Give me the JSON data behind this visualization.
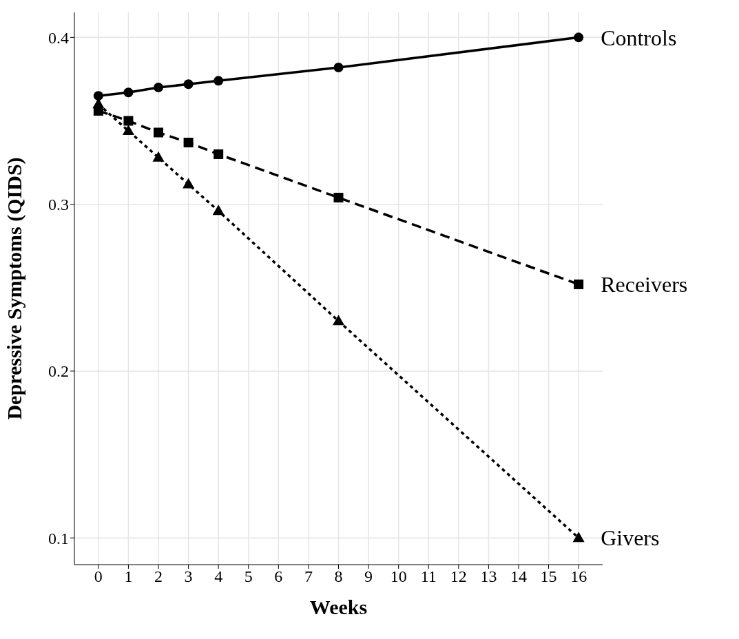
{
  "chart_data": {
    "type": "line",
    "xlabel": "Weeks",
    "ylabel": "Depressive Symptoms (QIDS)",
    "x": [
      0,
      1,
      2,
      3,
      4,
      8,
      16
    ],
    "series": [
      {
        "name": "Controls",
        "color": "#000000",
        "marker": "circle",
        "line_style": "solid",
        "values": [
          0.365,
          0.367,
          0.37,
          0.372,
          0.374,
          0.382,
          0.4
        ]
      },
      {
        "name": "Receivers",
        "color": "#000000",
        "marker": "square",
        "line_style": "dashed",
        "values": [
          0.356,
          0.35,
          0.343,
          0.337,
          0.33,
          0.304,
          0.252
        ]
      },
      {
        "name": "Givers",
        "color": "#000000",
        "marker": "triangle",
        "line_style": "dotted",
        "values": [
          0.36,
          0.344,
          0.328,
          0.312,
          0.296,
          0.23,
          0.1
        ]
      }
    ],
    "xlim": [
      -0.8,
      16.8
    ],
    "xticks": [
      0,
      1,
      2,
      3,
      4,
      5,
      6,
      7,
      8,
      9,
      10,
      11,
      12,
      13,
      14,
      15,
      16
    ],
    "ylim": [
      0.084,
      0.415
    ],
    "yticks": [
      0.1,
      0.2,
      0.3,
      0.4
    ],
    "grid": true,
    "legend": false
  }
}
